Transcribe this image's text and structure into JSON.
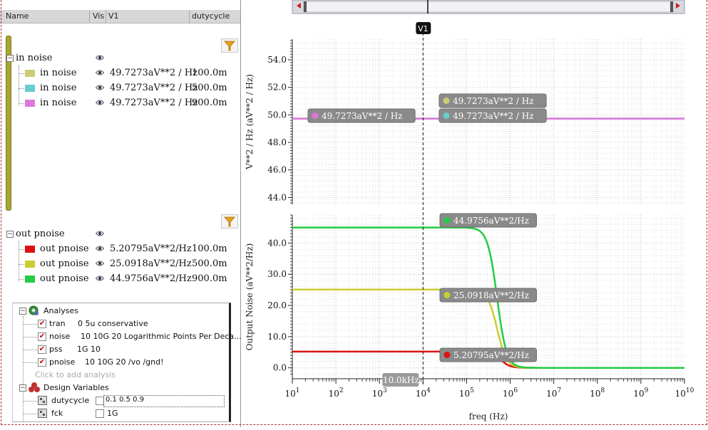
{
  "browser": {
    "columns": {
      "name": "Name",
      "vis": "Vis",
      "v1": "V1",
      "dutycycle": "dutycycle"
    },
    "groups": [
      {
        "label": "in noise",
        "rows": [
          {
            "name": "in noise",
            "color": "#cccc77",
            "v1": "49.7273aV**2 / Hz",
            "duty": "100.0m"
          },
          {
            "name": "in noise",
            "color": "#66cccc",
            "v1": "49.7273aV**2 / Hz",
            "duty": "500.0m"
          },
          {
            "name": "in noise",
            "color": "#dd77dd",
            "v1": "49.7273aV**2 / Hz",
            "duty": "900.0m"
          }
        ]
      },
      {
        "label": "out pnoise",
        "rows": [
          {
            "name": "out pnoise",
            "color": "#dd1111",
            "v1": "5.20795aV**2/Hz",
            "duty": "100.0m"
          },
          {
            "name": "out pnoise",
            "color": "#cccc33",
            "v1": "25.0918aV**2/Hz",
            "duty": "500.0m"
          },
          {
            "name": "out pnoise",
            "color": "#22cc44",
            "v1": "44.9756aV**2/Hz",
            "duty": "900.0m"
          }
        ]
      }
    ]
  },
  "analyses": {
    "title": "Analyses",
    "items": [
      {
        "name": "tran",
        "args": "0 5u conservative",
        "checked": true
      },
      {
        "name": "noise",
        "args": "10 10G 20 Logarithmic Points Per Deca...",
        "checked": true
      },
      {
        "name": "pss",
        "args": "1G 10",
        "checked": true
      },
      {
        "name": "pnoise",
        "args": "10 10G 20 /vo /gnd!",
        "checked": true
      }
    ],
    "add_placeholder": "Click to add analysis",
    "design_variables_title": "Design Variables",
    "variables": [
      {
        "name": "dutycycle",
        "value": "0.1 0.5 0.9"
      },
      {
        "name": "fck",
        "value": "1G"
      }
    ]
  },
  "cursor": {
    "label": "V1",
    "readout": "10.0kHz"
  },
  "chart_data": [
    {
      "type": "line",
      "ylabel": "V**2 / Hz (aV**2 / Hz)",
      "xlabel": "",
      "xscale": "log",
      "xlim": [
        10,
        10000000000
      ],
      "ylim": [
        43.5,
        55.5
      ],
      "yticks": [
        "44.0",
        "46.0",
        "48.0",
        "50.0",
        "52.0",
        "54.0"
      ],
      "series": [
        {
          "color": "#cccc77",
          "x": [
            10,
            10000000000
          ],
          "y": [
            49.7273,
            49.7273
          ]
        },
        {
          "color": "#66cccc",
          "x": [
            10,
            10000000000
          ],
          "y": [
            49.7273,
            49.7273
          ]
        },
        {
          "color": "#dd77dd",
          "x": [
            10,
            10000000000
          ],
          "y": [
            49.7273,
            49.7273
          ]
        }
      ],
      "annotations": [
        {
          "text": "49.7273aV**2 / Hz",
          "color": "#dd77dd"
        },
        {
          "text": "49.7273aV**2 / Hz",
          "color": "#cccc77"
        },
        {
          "text": "49.7273aV**2 / Hz",
          "color": "#66cccc"
        }
      ],
      "grid": true
    },
    {
      "type": "line",
      "ylabel": "Output Noise (aV**2/Hz)",
      "xlabel": "freq (Hz)",
      "xscale": "log",
      "xlim": [
        10,
        10000000000
      ],
      "ylim": [
        -3.5,
        49
      ],
      "xticks": [
        "10",
        "10",
        "10",
        "10",
        "10",
        "10",
        "10",
        "10",
        "10",
        "10"
      ],
      "xtick_exponents": [
        "1",
        "2",
        "3",
        "4",
        "5",
        "6",
        "7",
        "8",
        "9",
        "10"
      ],
      "yticks": [
        "0.0",
        "10.0",
        "20.0",
        "30.0",
        "40.0"
      ],
      "series": [
        {
          "color": "#dd1111",
          "low": 5.20795,
          "corner": 600000
        },
        {
          "color": "#cccc33",
          "low": 25.0918,
          "corner": 500000
        },
        {
          "color": "#22cc44",
          "low": 44.9756,
          "corner": 500000
        }
      ],
      "annotations": [
        {
          "text": "44.9756aV**2/Hz",
          "color": "#22cc44"
        },
        {
          "text": "25.0918aV**2/Hz",
          "color": "#cccc33"
        },
        {
          "text": "5.20795aV**2/Hz",
          "color": "#dd1111"
        }
      ],
      "grid": true
    }
  ]
}
